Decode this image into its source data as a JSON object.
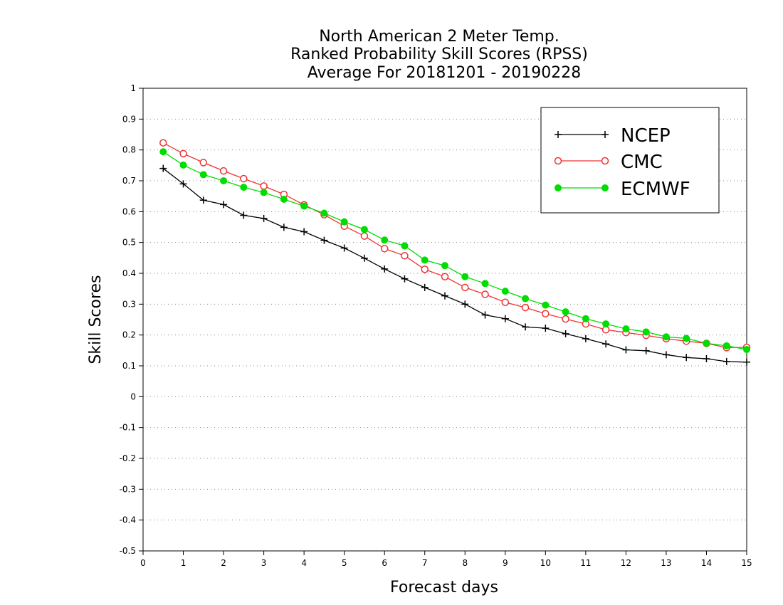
{
  "chart_data": {
    "type": "line",
    "title_lines": [
      "North American 2 Meter Temp.",
      "Ranked Probability Skill Scores (RPSS)",
      "Average For 20181201 - 20190228"
    ],
    "xlabel": "Forecast days",
    "ylabel": "Skill Scores",
    "xlim": [
      0,
      15
    ],
    "ylim": [
      -0.5,
      1
    ],
    "x_ticks": [
      0,
      1,
      2,
      3,
      4,
      5,
      6,
      7,
      8,
      9,
      10,
      11,
      12,
      13,
      14,
      15
    ],
    "y_ticks": [
      -0.5,
      -0.4,
      -0.3,
      -0.2,
      -0.1,
      0,
      0.1,
      0.2,
      0.3,
      0.4,
      0.5,
      0.6,
      0.7,
      0.8,
      0.9,
      1
    ],
    "y_tick_labels": [
      "-0.5",
      "-0.4",
      "-0.3",
      "-0.2",
      "-0.1",
      "0",
      "0.1",
      "0.2",
      "0.3",
      "0.4",
      "0.5",
      "0.6",
      "0.7",
      "0.8",
      "0.9",
      "1"
    ],
    "grid": "horizontal dotted",
    "legend_position": "top-right",
    "x": [
      0.5,
      1,
      1.5,
      2,
      2.5,
      3,
      3.5,
      4,
      4.5,
      5,
      5.5,
      6,
      6.5,
      7,
      7.5,
      8,
      8.5,
      9,
      9.5,
      10,
      10.5,
      11,
      11.5,
      12,
      12.5,
      13,
      13.5,
      14,
      14.5,
      15
    ],
    "series": [
      {
        "name": "NCEP",
        "color": "#000000",
        "marker": "plus",
        "values": [
          0.74,
          0.69,
          0.637,
          0.623,
          0.588,
          0.578,
          0.549,
          0.535,
          0.507,
          0.482,
          0.449,
          0.414,
          0.382,
          0.354,
          0.327,
          0.3,
          0.265,
          0.253,
          0.226,
          0.222,
          0.204,
          0.188,
          0.171,
          0.152,
          0.149,
          0.136,
          0.127,
          0.123,
          0.114,
          0.112
        ]
      },
      {
        "name": "CMC",
        "color": "#ee3333",
        "marker": "open-circle",
        "values": [
          0.823,
          0.788,
          0.759,
          0.732,
          0.707,
          0.683,
          0.656,
          0.622,
          0.59,
          0.553,
          0.521,
          0.48,
          0.457,
          0.413,
          0.389,
          0.354,
          0.332,
          0.306,
          0.289,
          0.269,
          0.252,
          0.236,
          0.217,
          0.208,
          0.199,
          0.188,
          0.18,
          0.173,
          0.159,
          0.16
        ]
      },
      {
        "name": "ECMWF",
        "color": "#00dd00",
        "marker": "filled-circle",
        "values": [
          0.794,
          0.751,
          0.72,
          0.7,
          0.679,
          0.662,
          0.64,
          0.618,
          0.595,
          0.567,
          0.542,
          0.508,
          0.489,
          0.443,
          0.425,
          0.389,
          0.367,
          0.342,
          0.318,
          0.297,
          0.275,
          0.253,
          0.236,
          0.22,
          0.21,
          0.194,
          0.189,
          0.173,
          0.165,
          0.153
        ]
      }
    ]
  }
}
